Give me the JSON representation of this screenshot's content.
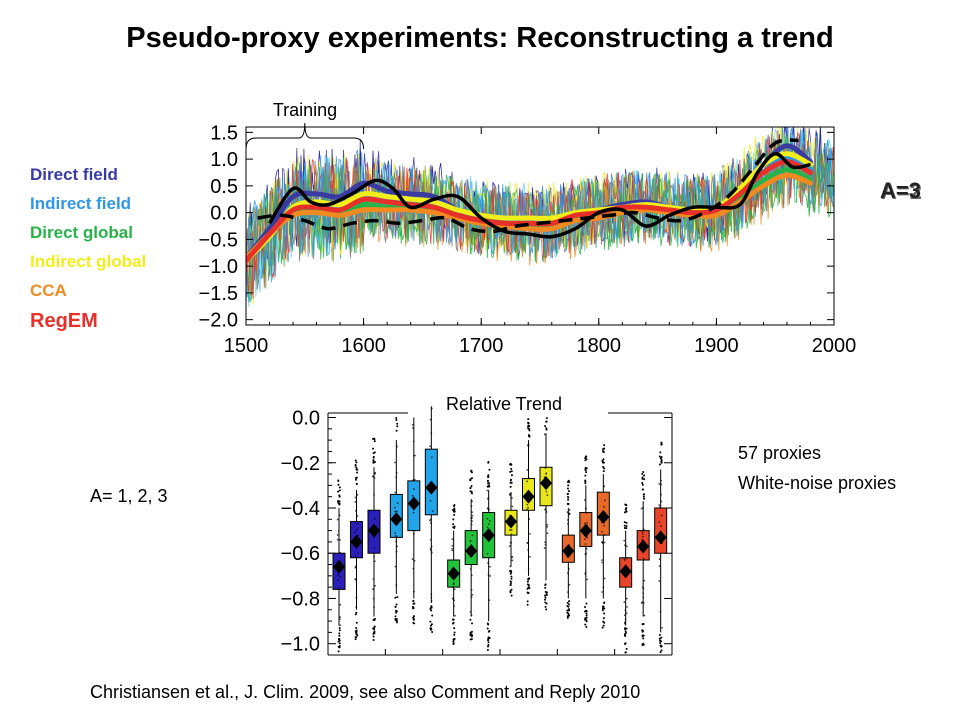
{
  "title": "Pseudo-proxy experiments: Reconstructing a trend",
  "legend": [
    {
      "label": "Direct field",
      "color": "#3a3ba0"
    },
    {
      "label": "Indirect field",
      "color": "#2f97e8"
    },
    {
      "label": "Direct global",
      "color": "#27b34a"
    },
    {
      "label": "Indirect global",
      "color": "#f2ee1a"
    },
    {
      "label": "CCA",
      "color": "#f08a21"
    },
    {
      "label": "RegEM",
      "color": "#e8302a"
    }
  ],
  "a_label": "A=3",
  "a_label_under": "A=2",
  "a_values": "A= 1, 2, 3",
  "proxies_count": "57 proxies",
  "proxies_type": "White-noise proxies",
  "citation": "Christiansen et al., J. Clim. 2009, see also Comment and Reply 2010",
  "chart_data": [
    {
      "type": "line",
      "annotation": "Training",
      "training_period": [
        1500,
        1600
      ],
      "xlim": [
        1500,
        2000
      ],
      "ylim": [
        -2.1,
        1.6
      ],
      "xticks": [
        1500,
        1600,
        1700,
        1800,
        1900,
        2000
      ],
      "yticks": [
        1.5,
        1.0,
        0.5,
        0.0,
        -0.5,
        -1.0,
        -1.5,
        -2.0
      ],
      "ytick_labels": [
        "1.5",
        "1.0",
        "0.5",
        "0.0",
        "−0.5",
        "−1.0",
        "−1.5",
        "−2.0"
      ],
      "series": [
        {
          "x": [
            1500,
            1520,
            1540,
            1560,
            1580,
            1600,
            1620,
            1640,
            1660,
            1680,
            1700,
            1720,
            1740,
            1760,
            1780,
            1800,
            1820,
            1840,
            1860,
            1880,
            1900,
            1920,
            1940,
            1960,
            1980
          ],
          "values": [
            -0.85,
            -0.3,
            0.3,
            0.35,
            0.3,
            0.55,
            0.4,
            0.35,
            0.3,
            0.05,
            -0.1,
            -0.15,
            -0.2,
            -0.2,
            -0.05,
            0.05,
            0.15,
            0.2,
            0.1,
            0.05,
            0.1,
            0.45,
            0.9,
            1.25,
            0.95
          ]
        },
        {
          "x": [
            1500,
            1520,
            1540,
            1560,
            1580,
            1600,
            1620,
            1640,
            1660,
            1680,
            1700,
            1720,
            1740,
            1760,
            1780,
            1800,
            1820,
            1840,
            1860,
            1880,
            1900,
            1920,
            1940,
            1960,
            1980
          ],
          "values": [
            -0.9,
            -0.4,
            0.05,
            0.15,
            0.1,
            0.3,
            0.25,
            0.2,
            0.2,
            0.05,
            -0.05,
            -0.1,
            -0.15,
            -0.15,
            -0.05,
            0.0,
            0.1,
            0.15,
            0.1,
            0.05,
            0.05,
            0.35,
            0.75,
            1.05,
            0.8
          ]
        },
        {
          "x": [
            1500,
            1520,
            1540,
            1560,
            1580,
            1600,
            1620,
            1640,
            1660,
            1680,
            1700,
            1720,
            1740,
            1760,
            1780,
            1800,
            1820,
            1840,
            1860,
            1880,
            1900,
            1920,
            1940,
            1960,
            1980
          ],
          "values": [
            -0.85,
            -0.4,
            0.0,
            0.05,
            0.0,
            0.15,
            0.1,
            0.1,
            0.1,
            -0.05,
            -0.15,
            -0.2,
            -0.25,
            -0.25,
            -0.1,
            -0.05,
            0.05,
            0.1,
            0.05,
            0.0,
            0.0,
            0.25,
            0.6,
            0.8,
            0.6
          ]
        },
        {
          "x": [
            1500,
            1520,
            1540,
            1560,
            1580,
            1600,
            1620,
            1640,
            1660,
            1680,
            1700,
            1720,
            1740,
            1760,
            1780,
            1800,
            1820,
            1840,
            1860,
            1880,
            1900,
            1920,
            1940,
            1960,
            1980
          ],
          "values": [
            -0.9,
            -0.45,
            0.1,
            0.2,
            0.15,
            0.35,
            0.3,
            0.25,
            0.2,
            0.05,
            -0.05,
            -0.1,
            -0.1,
            -0.1,
            0.0,
            0.05,
            0.1,
            0.15,
            0.1,
            0.05,
            0.1,
            0.45,
            0.9,
            1.1,
            0.9
          ]
        },
        {
          "x": [
            1500,
            1520,
            1540,
            1560,
            1580,
            1600,
            1620,
            1640,
            1660,
            1680,
            1700,
            1720,
            1740,
            1760,
            1780,
            1800,
            1820,
            1840,
            1860,
            1880,
            1900,
            1920,
            1940,
            1960,
            1980
          ],
          "values": [
            -0.85,
            -0.4,
            -0.05,
            0.0,
            -0.05,
            0.05,
            0.05,
            0.05,
            0.0,
            -0.1,
            -0.2,
            -0.25,
            -0.3,
            -0.3,
            -0.15,
            -0.1,
            0.0,
            0.05,
            0.0,
            -0.05,
            -0.05,
            0.2,
            0.5,
            0.7,
            0.55
          ]
        },
        {
          "x": [
            1500,
            1520,
            1540,
            1560,
            1580,
            1600,
            1620,
            1640,
            1660,
            1680,
            1700,
            1720,
            1740,
            1760,
            1780,
            1800,
            1820,
            1840,
            1860,
            1880,
            1900,
            1920,
            1940,
            1960,
            1980
          ],
          "values": [
            -0.9,
            -0.4,
            0.05,
            0.1,
            0.05,
            0.25,
            0.2,
            0.15,
            0.1,
            -0.05,
            -0.15,
            -0.2,
            -0.2,
            -0.2,
            -0.05,
            0.0,
            0.1,
            0.1,
            0.05,
            0.0,
            0.05,
            0.35,
            0.75,
            0.95,
            0.75
          ]
        },
        {
          "x": [
            1520,
            1540,
            1555,
            1570,
            1590,
            1610,
            1625,
            1640,
            1660,
            1680,
            1700,
            1720,
            1740,
            1760,
            1780,
            1800,
            1820,
            1840,
            1860,
            1880,
            1900,
            1920,
            1935,
            1950,
            1965,
            1980
          ],
          "values": [
            -0.2,
            0.45,
            0.2,
            0.15,
            0.35,
            0.6,
            0.45,
            0.1,
            0.25,
            0.3,
            -0.1,
            -0.35,
            -0.4,
            -0.45,
            -0.3,
            0.0,
            0.05,
            -0.25,
            -0.05,
            0.1,
            0.1,
            0.15,
            0.75,
            1.1,
            0.85,
            0.9
          ]
        },
        {
          "x": [
            1510,
            1530,
            1550,
            1570,
            1590,
            1610,
            1630,
            1650,
            1670,
            1690,
            1710,
            1730,
            1750,
            1770,
            1790,
            1810,
            1830,
            1850,
            1870,
            1890,
            1910,
            1930,
            1950,
            1970
          ],
          "values": [
            -0.1,
            -0.05,
            -0.15,
            -0.3,
            -0.2,
            -0.15,
            -0.2,
            -0.15,
            -0.1,
            -0.3,
            -0.35,
            -0.25,
            -0.2,
            -0.15,
            -0.1,
            -0.05,
            0.0,
            -0.1,
            -0.15,
            0.0,
            0.3,
            0.8,
            1.3,
            1.35
          ]
        }
      ]
    },
    {
      "type": "box",
      "title": "Relative Trend",
      "ylim": [
        -1.05,
        0.02
      ],
      "yticks": [
        0.0,
        -0.2,
        -0.4,
        -0.6,
        -0.8,
        -1.0
      ],
      "ytick_labels": [
        "0.0",
        "−0.2",
        "−0.4",
        "−0.6",
        "−0.8",
        "−1.0"
      ],
      "groups": [
        {
          "color": "#2a1fb8",
          "boxes": [
            {
              "q1": -0.76,
              "median": -0.66,
              "q3": -0.6,
              "mean": -0.66,
              "whisker": [
                -0.92,
                -0.4
              ]
            },
            {
              "q1": -0.62,
              "median": -0.55,
              "q3": -0.46,
              "mean": -0.55,
              "whisker": [
                -0.85,
                -0.32
              ]
            },
            {
              "q1": -0.6,
              "median": -0.5,
              "q3": -0.41,
              "mean": -0.5,
              "whisker": [
                -0.88,
                -0.22
              ]
            }
          ]
        },
        {
          "color": "#22a4e8",
          "boxes": [
            {
              "q1": -0.53,
              "median": -0.45,
              "q3": -0.34,
              "mean": -0.45,
              "whisker": [
                -0.78,
                -0.1
              ]
            },
            {
              "q1": -0.5,
              "median": -0.38,
              "q3": -0.28,
              "mean": -0.38,
              "whisker": [
                -0.8,
                0.0
              ]
            },
            {
              "q1": -0.43,
              "median": -0.31,
              "q3": -0.14,
              "mean": -0.31,
              "whisker": [
                -0.82,
                0.05
              ]
            }
          ]
        },
        {
          "color": "#22c33a",
          "boxes": [
            {
              "q1": -0.75,
              "median": -0.69,
              "q3": -0.63,
              "mean": -0.69,
              "whisker": [
                -0.88,
                -0.5
              ]
            },
            {
              "q1": -0.65,
              "median": -0.59,
              "q3": -0.5,
              "mean": -0.59,
              "whisker": [
                -0.88,
                -0.36
              ]
            },
            {
              "q1": -0.62,
              "median": -0.52,
              "q3": -0.42,
              "mean": -0.52,
              "whisker": [
                -0.9,
                -0.32
              ]
            }
          ]
        },
        {
          "color": "#e7e71c",
          "boxes": [
            {
              "q1": -0.52,
              "median": -0.46,
              "q3": -0.41,
              "mean": -0.46,
              "whisker": [
                -0.66,
                -0.33
              ]
            },
            {
              "q1": -0.41,
              "median": -0.35,
              "q3": -0.27,
              "mean": -0.35,
              "whisker": [
                -0.7,
                -0.1
              ]
            },
            {
              "q1": -0.39,
              "median": -0.29,
              "q3": -0.22,
              "mean": -0.29,
              "whisker": [
                -0.72,
                -0.07
              ]
            }
          ]
        },
        {
          "color": "#e86a2a",
          "boxes": [
            {
              "q1": -0.64,
              "median": -0.59,
              "q3": -0.52,
              "mean": -0.59,
              "whisker": [
                -0.8,
                -0.4
              ]
            },
            {
              "q1": -0.57,
              "median": -0.5,
              "q3": -0.42,
              "mean": -0.5,
              "whisker": [
                -0.8,
                -0.3
              ]
            },
            {
              "q1": -0.52,
              "median": -0.44,
              "q3": -0.33,
              "mean": -0.44,
              "whisker": [
                -0.8,
                -0.25
              ]
            }
          ]
        },
        {
          "color": "#e8452a",
          "boxes": [
            {
              "q1": -0.75,
              "median": -0.68,
              "q3": -0.62,
              "mean": -0.68,
              "whisker": [
                -0.92,
                -0.5
              ]
            },
            {
              "q1": -0.63,
              "median": -0.57,
              "q3": -0.5,
              "mean": -0.57,
              "whisker": [
                -0.88,
                -0.37
              ]
            },
            {
              "q1": -0.6,
              "median": -0.53,
              "q3": -0.4,
              "mean": -0.53,
              "whisker": [
                -0.95,
                -0.23
              ]
            }
          ]
        }
      ]
    }
  ]
}
